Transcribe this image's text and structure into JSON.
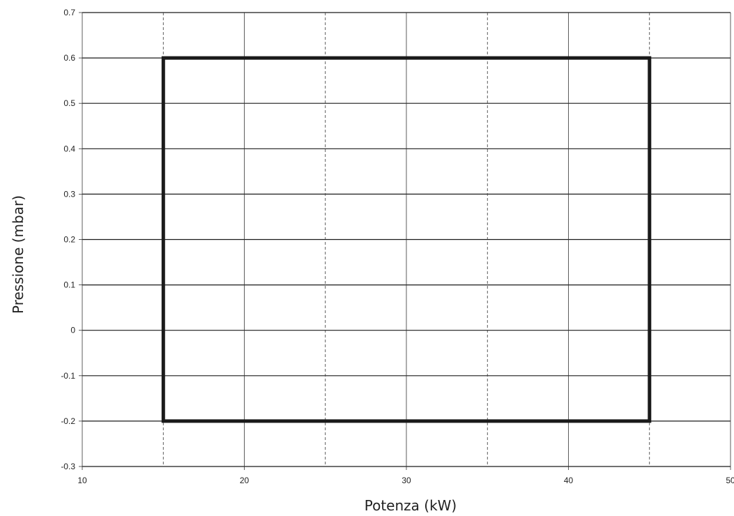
{
  "chart_data": {
    "type": "line",
    "title": "",
    "xlabel": "Potenza (kW)",
    "ylabel": "Pressione (mbar)",
    "xlim": [
      10,
      50
    ],
    "ylim": [
      -0.3,
      0.7
    ],
    "xticks": [
      10,
      20,
      30,
      40,
      50
    ],
    "yticks": [
      -0.3,
      -0.2,
      -0.1,
      0,
      0.1,
      0.2,
      0.3,
      0.4,
      0.5,
      0.6,
      0.7
    ],
    "x_tick_labels": [
      "10",
      "20",
      "30",
      "40",
      "50"
    ],
    "y_tick_labels": [
      "-0.3",
      "-0.2",
      "-0.1",
      "0",
      "0.1",
      "0.2",
      "0.3",
      "0.4",
      "0.5",
      "0.6",
      "0.7"
    ],
    "grid": {
      "horizontal": "solid",
      "vertical_major": "solid",
      "vertical_minor_dashed": [
        15,
        25,
        35,
        45
      ]
    },
    "series": [
      {
        "x": [
          15,
          45,
          45,
          15,
          15
        ],
        "y": [
          0.6,
          0.6,
          -0.2,
          -0.2,
          0.6
        ],
        "color": "#1a1a1a"
      }
    ]
  }
}
